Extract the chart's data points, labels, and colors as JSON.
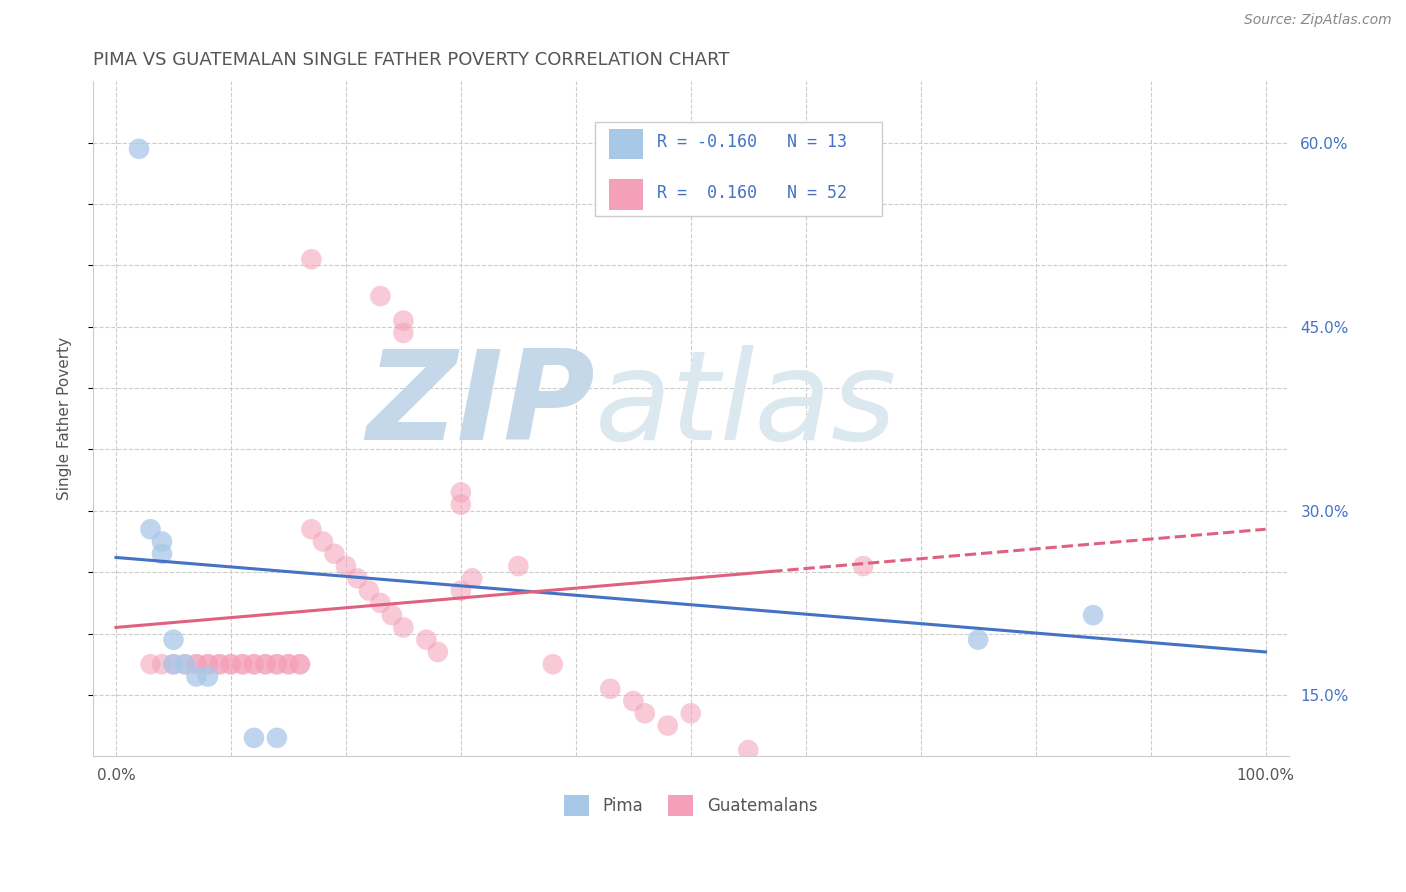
{
  "title": "PIMA VS GUATEMALAN SINGLE FATHER POVERTY CORRELATION CHART",
  "source": "Source: ZipAtlas.com",
  "ylabel": "Single Father Poverty",
  "y_ticks": [
    0.15,
    0.2,
    0.25,
    0.3,
    0.35,
    0.4,
    0.45,
    0.5,
    0.55,
    0.6
  ],
  "y_tick_labels": [
    "15.0%",
    "",
    "",
    "30.0%",
    "",
    "",
    "45.0%",
    "",
    "",
    "60.0%"
  ],
  "x_ticks": [
    0.0,
    0.1,
    0.2,
    0.3,
    0.4,
    0.5,
    0.6,
    0.7,
    0.8,
    0.9,
    1.0
  ],
  "x_tick_labels": [
    "0.0%",
    "",
    "",
    "",
    "",
    "",
    "",
    "",
    "",
    "",
    "100.0%"
  ],
  "xlim": [
    -0.02,
    1.02
  ],
  "ylim": [
    0.1,
    0.65
  ],
  "pima_color": "#a8c8e8",
  "guatemalan_color": "#f4a0b8",
  "pima_R": -0.16,
  "pima_N": 13,
  "guatemalan_R": 0.16,
  "guatemalan_N": 52,
  "pima_points_x": [
    0.02,
    0.03,
    0.04,
    0.04,
    0.05,
    0.05,
    0.06,
    0.07,
    0.08,
    0.75,
    0.85,
    0.12,
    0.14
  ],
  "pima_points_y": [
    0.595,
    0.285,
    0.275,
    0.265,
    0.195,
    0.175,
    0.175,
    0.165,
    0.165,
    0.195,
    0.215,
    0.115,
    0.115
  ],
  "guatemalan_points_x": [
    0.17,
    0.23,
    0.25,
    0.25,
    0.3,
    0.3,
    0.03,
    0.04,
    0.05,
    0.06,
    0.07,
    0.07,
    0.08,
    0.08,
    0.09,
    0.09,
    0.1,
    0.1,
    0.11,
    0.11,
    0.12,
    0.12,
    0.13,
    0.13,
    0.14,
    0.14,
    0.15,
    0.15,
    0.16,
    0.16,
    0.17,
    0.18,
    0.19,
    0.2,
    0.21,
    0.22,
    0.23,
    0.24,
    0.25,
    0.27,
    0.28,
    0.3,
    0.31,
    0.35,
    0.38,
    0.43,
    0.45,
    0.46,
    0.48,
    0.5,
    0.55,
    0.65
  ],
  "guatemalan_points_y": [
    0.505,
    0.475,
    0.455,
    0.445,
    0.315,
    0.305,
    0.175,
    0.175,
    0.175,
    0.175,
    0.175,
    0.175,
    0.175,
    0.175,
    0.175,
    0.175,
    0.175,
    0.175,
    0.175,
    0.175,
    0.175,
    0.175,
    0.175,
    0.175,
    0.175,
    0.175,
    0.175,
    0.175,
    0.175,
    0.175,
    0.285,
    0.275,
    0.265,
    0.255,
    0.245,
    0.235,
    0.225,
    0.215,
    0.205,
    0.195,
    0.185,
    0.235,
    0.245,
    0.255,
    0.175,
    0.155,
    0.145,
    0.135,
    0.125,
    0.135,
    0.105,
    0.255
  ],
  "background_color": "#ffffff",
  "grid_color": "#cccccc",
  "title_color": "#555555",
  "watermark_zip": "ZIP",
  "watermark_atlas": "atlas",
  "watermark_color_zip": "#c8d8e8",
  "watermark_color_atlas": "#c8d8e8",
  "legend_R_color": "#4472c4",
  "pima_line_color": "#4472c4",
  "guatemalan_line_color": "#e06080",
  "pima_line_start_y": 0.262,
  "pima_line_end_y": 0.185,
  "guatemalan_line_start_y": 0.205,
  "guatemalan_line_end_y": 0.285
}
